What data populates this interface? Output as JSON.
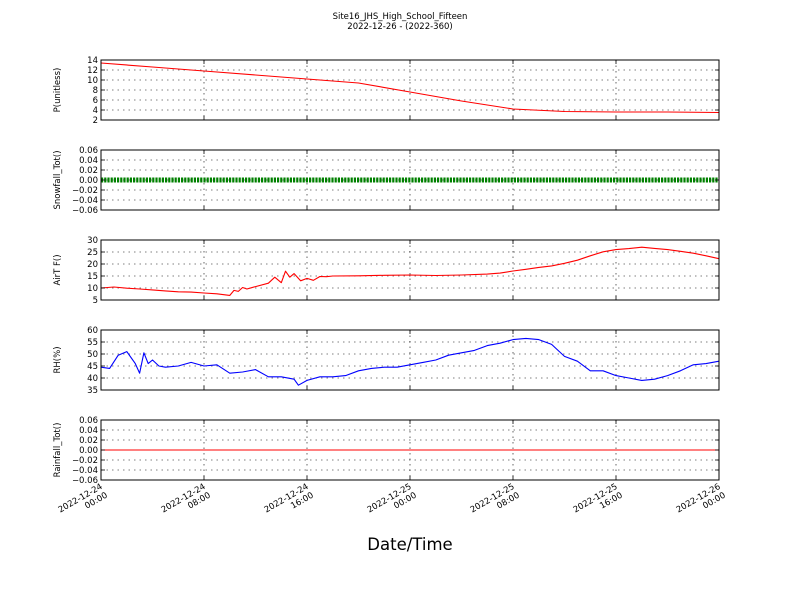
{
  "figure": {
    "title": "Site16_JHS_High_School_Fifteen",
    "subtitle": "2022-12-26 - (2022-360)",
    "xlabel": "Date/Time"
  },
  "x_ticks": [
    {
      "line1": "2022-12-24",
      "line2": "00:00",
      "x": "2022-12-24 00:00"
    },
    {
      "line1": "2022-12-24",
      "line2": "08:00",
      "x": "2022-12-24 08:00"
    },
    {
      "line1": "2022-12-24",
      "line2": "16:00",
      "x": "2022-12-24 16:00"
    },
    {
      "line1": "2022-12-25",
      "line2": "00:00",
      "x": "2022-12-25 00:00"
    },
    {
      "line1": "2022-12-25",
      "line2": "08:00",
      "x": "2022-12-25 08:00"
    },
    {
      "line1": "2022-12-25",
      "line2": "16:00",
      "x": "2022-12-25 16:00"
    },
    {
      "line1": "2022-12-26",
      "line2": "00:00",
      "x": "2022-12-26 00:00"
    }
  ],
  "chart_data": [
    {
      "type": "line",
      "ylabel": "P(unitless)",
      "ylim": [
        2,
        14
      ],
      "yticks": [
        "2",
        "4",
        "6",
        "8",
        "10",
        "12",
        "14"
      ],
      "grid": true,
      "series": [
        {
          "color": "#ff0000",
          "x": [
            "2022-12-24 00:00",
            "2022-12-24 04:00",
            "2022-12-24 08:00",
            "2022-12-24 12:00",
            "2022-12-24 16:00",
            "2022-12-24 20:00",
            "2022-12-25 00:00",
            "2022-12-25 04:00",
            "2022-12-25 08:00",
            "2022-12-25 12:00",
            "2022-12-25 16:00",
            "2022-12-25 20:00",
            "2022-12-26 00:00"
          ],
          "values": [
            13.4,
            12.6,
            11.8,
            11.0,
            10.2,
            9.4,
            7.6,
            5.8,
            4.2,
            3.7,
            3.6,
            3.6,
            3.5
          ]
        }
      ]
    },
    {
      "type": "scatter",
      "ylabel": "Snowfall_Tot()",
      "ylim": [
        -0.06,
        0.06
      ],
      "yticks": [
        "−0.06",
        "−0.04",
        "−0.02",
        "0.00",
        "0.02",
        "0.04",
        "0.06"
      ],
      "grid": true,
      "series": [
        {
          "color": "#008000",
          "x_range": [
            "2022-12-24 00:00",
            "2022-12-26 00:00"
          ],
          "constant": 0.0
        }
      ]
    },
    {
      "type": "line",
      "ylabel": "AirT F()",
      "ylim": [
        5,
        30
      ],
      "yticks": [
        "5",
        "10",
        "15",
        "20",
        "25",
        "30"
      ],
      "grid": true,
      "series": [
        {
          "color": "#ff0000",
          "x": [
            "2022-12-24 00:00",
            "2022-12-24 01:00",
            "2022-12-24 02:00",
            "2022-12-24 03:00",
            "2022-12-24 04:00",
            "2022-12-24 05:00",
            "2022-12-24 06:00",
            "2022-12-24 07:00",
            "2022-12-24 08:00",
            "2022-12-24 09:00",
            "2022-12-24 10:00",
            "2022-12-24 10:20",
            "2022-12-24 10:40",
            "2022-12-24 11:00",
            "2022-12-24 11:20",
            "2022-12-24 11:40",
            "2022-12-24 12:00",
            "2022-12-24 13:00",
            "2022-12-24 13:30",
            "2022-12-24 14:00",
            "2022-12-24 14:20",
            "2022-12-24 14:40",
            "2022-12-24 15:00",
            "2022-12-24 15:30",
            "2022-12-24 16:00",
            "2022-12-24 16:30",
            "2022-12-24 17:00",
            "2022-12-24 17:30",
            "2022-12-24 18:00",
            "2022-12-24 20:00",
            "2022-12-24 22:00",
            "2022-12-25 00:00",
            "2022-12-25 02:00",
            "2022-12-25 04:00",
            "2022-12-25 06:00",
            "2022-12-25 07:00",
            "2022-12-25 08:00",
            "2022-12-25 09:00",
            "2022-12-25 10:00",
            "2022-12-25 11:00",
            "2022-12-25 12:00",
            "2022-12-25 13:00",
            "2022-12-25 14:00",
            "2022-12-25 15:00",
            "2022-12-25 16:00",
            "2022-12-25 17:00",
            "2022-12-25 18:00",
            "2022-12-25 19:00",
            "2022-12-25 20:00",
            "2022-12-25 21:00",
            "2022-12-25 22:00",
            "2022-12-25 23:00",
            "2022-12-26 00:00"
          ],
          "values": [
            10.0,
            10.4,
            9.9,
            9.6,
            9.2,
            8.8,
            8.4,
            8.3,
            7.9,
            7.6,
            6.9,
            9.0,
            8.6,
            10.2,
            9.6,
            10.1,
            10.6,
            12.0,
            14.5,
            12.2,
            17.0,
            14.5,
            16.0,
            13.0,
            14.0,
            13.2,
            14.8,
            14.7,
            15.0,
            15.1,
            15.3,
            15.4,
            15.2,
            15.4,
            15.8,
            16.2,
            17.1,
            17.8,
            18.6,
            19.2,
            20.3,
            21.6,
            23.4,
            25.1,
            26.0,
            26.4,
            27.0,
            26.5,
            26.0,
            25.3,
            24.5,
            23.4,
            22.2
          ]
        }
      ]
    },
    {
      "type": "line",
      "ylabel": "RH(%)",
      "ylim": [
        35,
        60
      ],
      "yticks": [
        "35",
        "40",
        "45",
        "50",
        "55",
        "60"
      ],
      "grid": true,
      "series": [
        {
          "color": "#0000ff",
          "x": [
            "2022-12-24 00:00",
            "2022-12-24 00:40",
            "2022-12-24 01:20",
            "2022-12-24 02:00",
            "2022-12-24 02:40",
            "2022-12-24 03:00",
            "2022-12-24 03:20",
            "2022-12-24 03:40",
            "2022-12-24 04:00",
            "2022-12-24 04:30",
            "2022-12-24 05:00",
            "2022-12-24 06:00",
            "2022-12-24 07:00",
            "2022-12-24 08:00",
            "2022-12-24 09:00",
            "2022-12-24 10:00",
            "2022-12-24 11:00",
            "2022-12-24 12:00",
            "2022-12-24 13:00",
            "2022-12-24 14:00",
            "2022-12-24 15:00",
            "2022-12-24 15:20",
            "2022-12-24 16:00",
            "2022-12-24 17:00",
            "2022-12-24 18:00",
            "2022-12-24 19:00",
            "2022-12-24 20:00",
            "2022-12-24 21:00",
            "2022-12-24 22:00",
            "2022-12-24 23:00",
            "2022-12-25 00:00",
            "2022-12-25 01:00",
            "2022-12-25 02:00",
            "2022-12-25 03:00",
            "2022-12-25 04:00",
            "2022-12-25 05:00",
            "2022-12-25 06:00",
            "2022-12-25 07:00",
            "2022-12-25 08:00",
            "2022-12-25 09:00",
            "2022-12-25 10:00",
            "2022-12-25 11:00",
            "2022-12-25 12:00",
            "2022-12-25 13:00",
            "2022-12-25 14:00",
            "2022-12-25 15:00",
            "2022-12-25 16:00",
            "2022-12-25 17:00",
            "2022-12-25 18:00",
            "2022-12-25 19:00",
            "2022-12-25 20:00",
            "2022-12-25 21:00",
            "2022-12-25 22:00",
            "2022-12-25 23:00",
            "2022-12-26 00:00"
          ],
          "values": [
            44.5,
            44.0,
            49.5,
            51.0,
            46.0,
            42.0,
            50.5,
            46.0,
            47.5,
            45.0,
            44.5,
            45.0,
            46.5,
            45.0,
            45.5,
            42.0,
            42.5,
            43.5,
            40.5,
            40.5,
            39.5,
            37.0,
            39.0,
            40.5,
            40.5,
            41.0,
            43.0,
            44.0,
            44.5,
            44.5,
            45.5,
            46.5,
            47.5,
            49.5,
            50.5,
            51.5,
            53.5,
            54.5,
            56.0,
            56.5,
            56.0,
            54.0,
            49.0,
            47.0,
            43.0,
            43.0,
            41.0,
            40.0,
            39.0,
            39.5,
            41.0,
            43.0,
            45.5,
            46.0,
            47.0
          ]
        }
      ]
    },
    {
      "type": "line",
      "ylabel": "Rainfall_Tot()",
      "ylim": [
        -0.06,
        0.06
      ],
      "yticks": [
        "−0.06",
        "−0.04",
        "−0.02",
        "0.00",
        "0.02",
        "0.04",
        "0.06"
      ],
      "grid": true,
      "series": [
        {
          "color": "#ff0000",
          "x": [
            "2022-12-24 00:00",
            "2022-12-26 00:00"
          ],
          "values": [
            0.0,
            0.0
          ]
        }
      ]
    }
  ]
}
